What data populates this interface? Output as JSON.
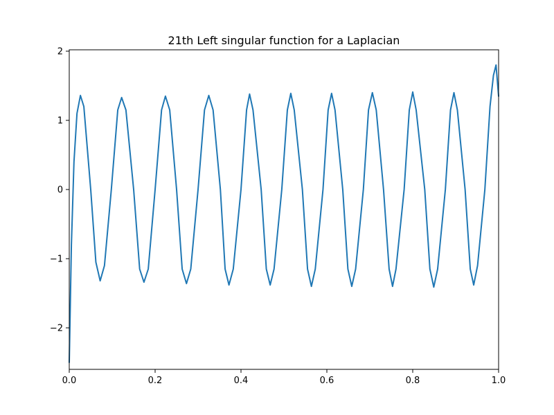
{
  "chart_data": {
    "type": "line",
    "title": "21th Left singular function for a Laplacian",
    "xlabel": "",
    "ylabel": "",
    "xlim": [
      0.0,
      1.0
    ],
    "ylim": [
      -2.6,
      2.02
    ],
    "grid": false,
    "legend": "none",
    "line_color": "#1f77b4",
    "x_ticks": [
      {
        "value": 0.0,
        "label": "0.0"
      },
      {
        "value": 0.2,
        "label": "0.2"
      },
      {
        "value": 0.4,
        "label": "0.4"
      },
      {
        "value": 0.6,
        "label": "0.6"
      },
      {
        "value": 0.8,
        "label": "0.8"
      },
      {
        "value": 1.0,
        "label": "1.0"
      }
    ],
    "y_ticks": [
      {
        "value": -2,
        "label": "−2"
      },
      {
        "value": -1,
        "label": "−1"
      },
      {
        "value": 0,
        "label": "0"
      },
      {
        "value": 1,
        "label": "1"
      },
      {
        "value": 2,
        "label": "2"
      }
    ],
    "series": [
      {
        "x": [
          0.0,
          0.005,
          0.011,
          0.018,
          0.026,
          0.034,
          0.05,
          0.062,
          0.072,
          0.082,
          0.098,
          0.113,
          0.122,
          0.132,
          0.15,
          0.164,
          0.174,
          0.184,
          0.2,
          0.215,
          0.224,
          0.234,
          0.25,
          0.263,
          0.273,
          0.283,
          0.3,
          0.315,
          0.325,
          0.335,
          0.352,
          0.363,
          0.372,
          0.382,
          0.4,
          0.413,
          0.42,
          0.428,
          0.447,
          0.459,
          0.468,
          0.477,
          0.495,
          0.508,
          0.516,
          0.524,
          0.543,
          0.555,
          0.564,
          0.573,
          0.591,
          0.603,
          0.611,
          0.619,
          0.637,
          0.649,
          0.658,
          0.667,
          0.685,
          0.697,
          0.706,
          0.715,
          0.732,
          0.745,
          0.753,
          0.761,
          0.78,
          0.792,
          0.8,
          0.808,
          0.828,
          0.84,
          0.849,
          0.858,
          0.876,
          0.888,
          0.896,
          0.904,
          0.922,
          0.934,
          0.942,
          0.951,
          0.968,
          0.98,
          0.988,
          0.994,
          1.0
        ],
        "y": [
          -2.5,
          -0.8,
          0.4,
          1.1,
          1.36,
          1.2,
          0.0,
          -1.05,
          -1.32,
          -1.1,
          0.0,
          1.15,
          1.33,
          1.15,
          0.0,
          -1.15,
          -1.34,
          -1.15,
          0.0,
          1.15,
          1.35,
          1.15,
          0.0,
          -1.15,
          -1.36,
          -1.15,
          0.0,
          1.15,
          1.36,
          1.15,
          0.0,
          -1.15,
          -1.38,
          -1.15,
          0.0,
          1.15,
          1.38,
          1.15,
          0.0,
          -1.15,
          -1.38,
          -1.15,
          0.0,
          1.15,
          1.39,
          1.15,
          0.0,
          -1.15,
          -1.4,
          -1.15,
          0.0,
          1.15,
          1.39,
          1.15,
          0.0,
          -1.15,
          -1.4,
          -1.15,
          0.0,
          1.15,
          1.4,
          1.15,
          0.0,
          -1.15,
          -1.4,
          -1.15,
          0.0,
          1.15,
          1.41,
          1.15,
          0.0,
          -1.15,
          -1.41,
          -1.15,
          0.0,
          1.15,
          1.4,
          1.15,
          0.0,
          -1.15,
          -1.38,
          -1.1,
          0.0,
          1.2,
          1.65,
          1.8,
          1.35
        ]
      }
    ]
  }
}
